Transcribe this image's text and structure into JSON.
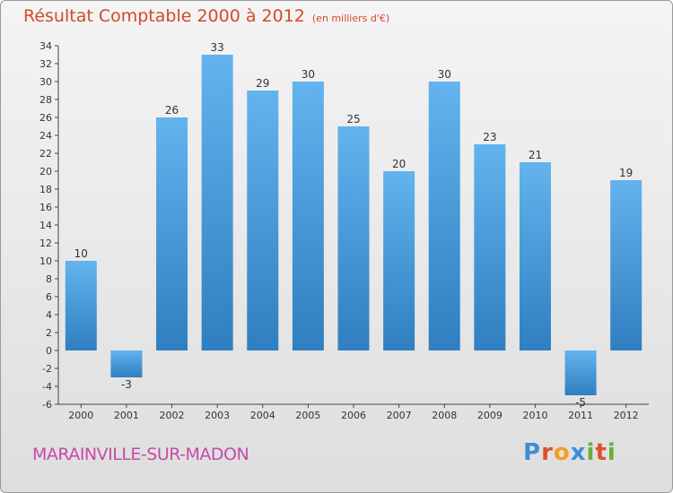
{
  "title": "Résultat Comptable 2000 à 2012",
  "subtitle": "(en milliers d'€)",
  "commune": "MARAINVILLE-SUR-MADON",
  "logo": {
    "text": "Proxiti",
    "letters": [
      "P",
      "r",
      "o",
      "x",
      "i",
      "t",
      "i"
    ],
    "colors": [
      "#3c8fd6",
      "#e0502a",
      "#f0a020",
      "#3c8fd6",
      "#6aae3a",
      "#e0502a",
      "#6aae3a"
    ]
  },
  "colors": {
    "bar_top": "#63b3ee",
    "bar_bottom": "#2f7fc1",
    "title": "#d34a2a",
    "commune": "#c74aa8"
  },
  "chart_data": {
    "type": "bar",
    "title": "Résultat Comptable 2000 à 2012",
    "subtitle": "(en milliers d'€)",
    "categories": [
      "2000",
      "2001",
      "2002",
      "2003",
      "2004",
      "2005",
      "2006",
      "2007",
      "2008",
      "2009",
      "2010",
      "2011",
      "2012"
    ],
    "values": [
      10,
      -3,
      26,
      33,
      29,
      30,
      25,
      20,
      30,
      23,
      21,
      -5,
      19
    ],
    "ylim": [
      -6,
      34
    ],
    "yticks": [
      -6,
      -4,
      -2,
      0,
      2,
      4,
      6,
      8,
      10,
      12,
      14,
      16,
      18,
      20,
      22,
      24,
      26,
      28,
      30,
      32,
      34
    ],
    "xlabel": "",
    "ylabel": "",
    "grid": false
  }
}
